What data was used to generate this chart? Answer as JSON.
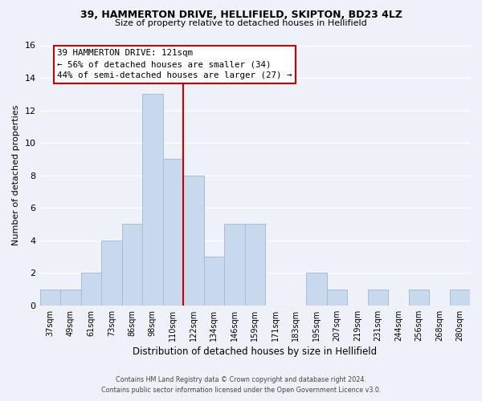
{
  "title_line1": "39, HAMMERTON DRIVE, HELLIFIELD, SKIPTON, BD23 4LZ",
  "title_line2": "Size of property relative to detached houses in Hellifield",
  "xlabel": "Distribution of detached houses by size in Hellifield",
  "ylabel": "Number of detached properties",
  "bar_labels": [
    "37sqm",
    "49sqm",
    "61sqm",
    "73sqm",
    "86sqm",
    "98sqm",
    "110sqm",
    "122sqm",
    "134sqm",
    "146sqm",
    "159sqm",
    "171sqm",
    "183sqm",
    "195sqm",
    "207sqm",
    "219sqm",
    "231sqm",
    "244sqm",
    "256sqm",
    "268sqm",
    "280sqm"
  ],
  "bar_values": [
    1,
    1,
    2,
    4,
    5,
    13,
    9,
    8,
    3,
    5,
    5,
    0,
    0,
    2,
    1,
    0,
    1,
    0,
    1,
    0,
    1
  ],
  "bar_color": "#c8d9ee",
  "bar_edge_color": "#a8bcd8",
  "vline_color": "#cc0000",
  "ylim": [
    0,
    16
  ],
  "yticks": [
    0,
    2,
    4,
    6,
    8,
    10,
    12,
    14,
    16
  ],
  "annotation_title": "39 HAMMERTON DRIVE: 121sqm",
  "annotation_line1": "← 56% of detached houses are smaller (34)",
  "annotation_line2": "44% of semi-detached houses are larger (27) →",
  "annotation_box_color": "#ffffff",
  "annotation_box_edge": "#cc0000",
  "footer_line1": "Contains HM Land Registry data © Crown copyright and database right 2024.",
  "footer_line2": "Contains public sector information licensed under the Open Government Licence v3.0.",
  "background_color": "#eef2f8",
  "grid_color": "#ffffff"
}
